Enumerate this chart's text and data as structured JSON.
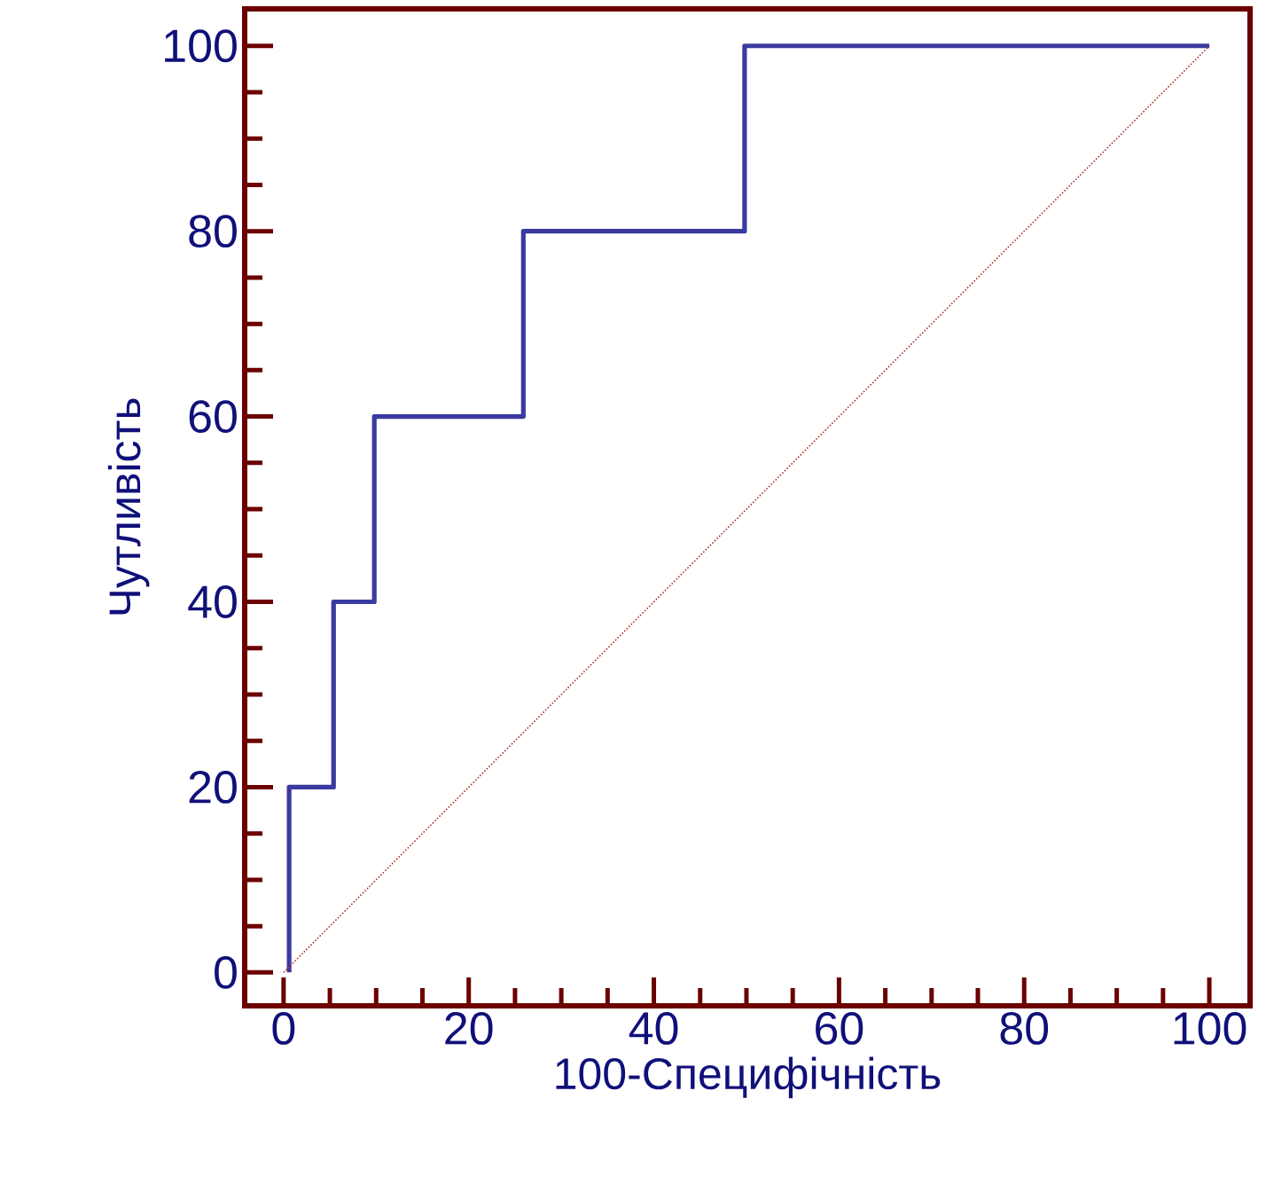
{
  "chart_data": {
    "type": "line",
    "xlabel": "100-Специфічність",
    "ylabel": "Чутливість",
    "xlim": [
      -4.2,
      104.4
    ],
    "ylim": [
      -3.6,
      104
    ],
    "xticks": [
      0,
      20,
      40,
      60,
      80,
      100
    ],
    "yticks": [
      0,
      20,
      40,
      60,
      80,
      100
    ],
    "series": [
      {
        "color": "#3a3aa0",
        "x": [
          0.6,
          0.6,
          5.4,
          5.4,
          9.8,
          9.8,
          25.9,
          25.9,
          49.8,
          49.8,
          100
        ],
        "values": [
          0,
          20,
          20,
          40,
          40,
          60,
          60,
          80,
          80,
          100,
          100
        ],
        "line_style": "solid"
      },
      {
        "color": "#b03030",
        "x": [
          0,
          100
        ],
        "values": [
          0,
          100
        ],
        "line_style": "dotted"
      }
    ]
  }
}
